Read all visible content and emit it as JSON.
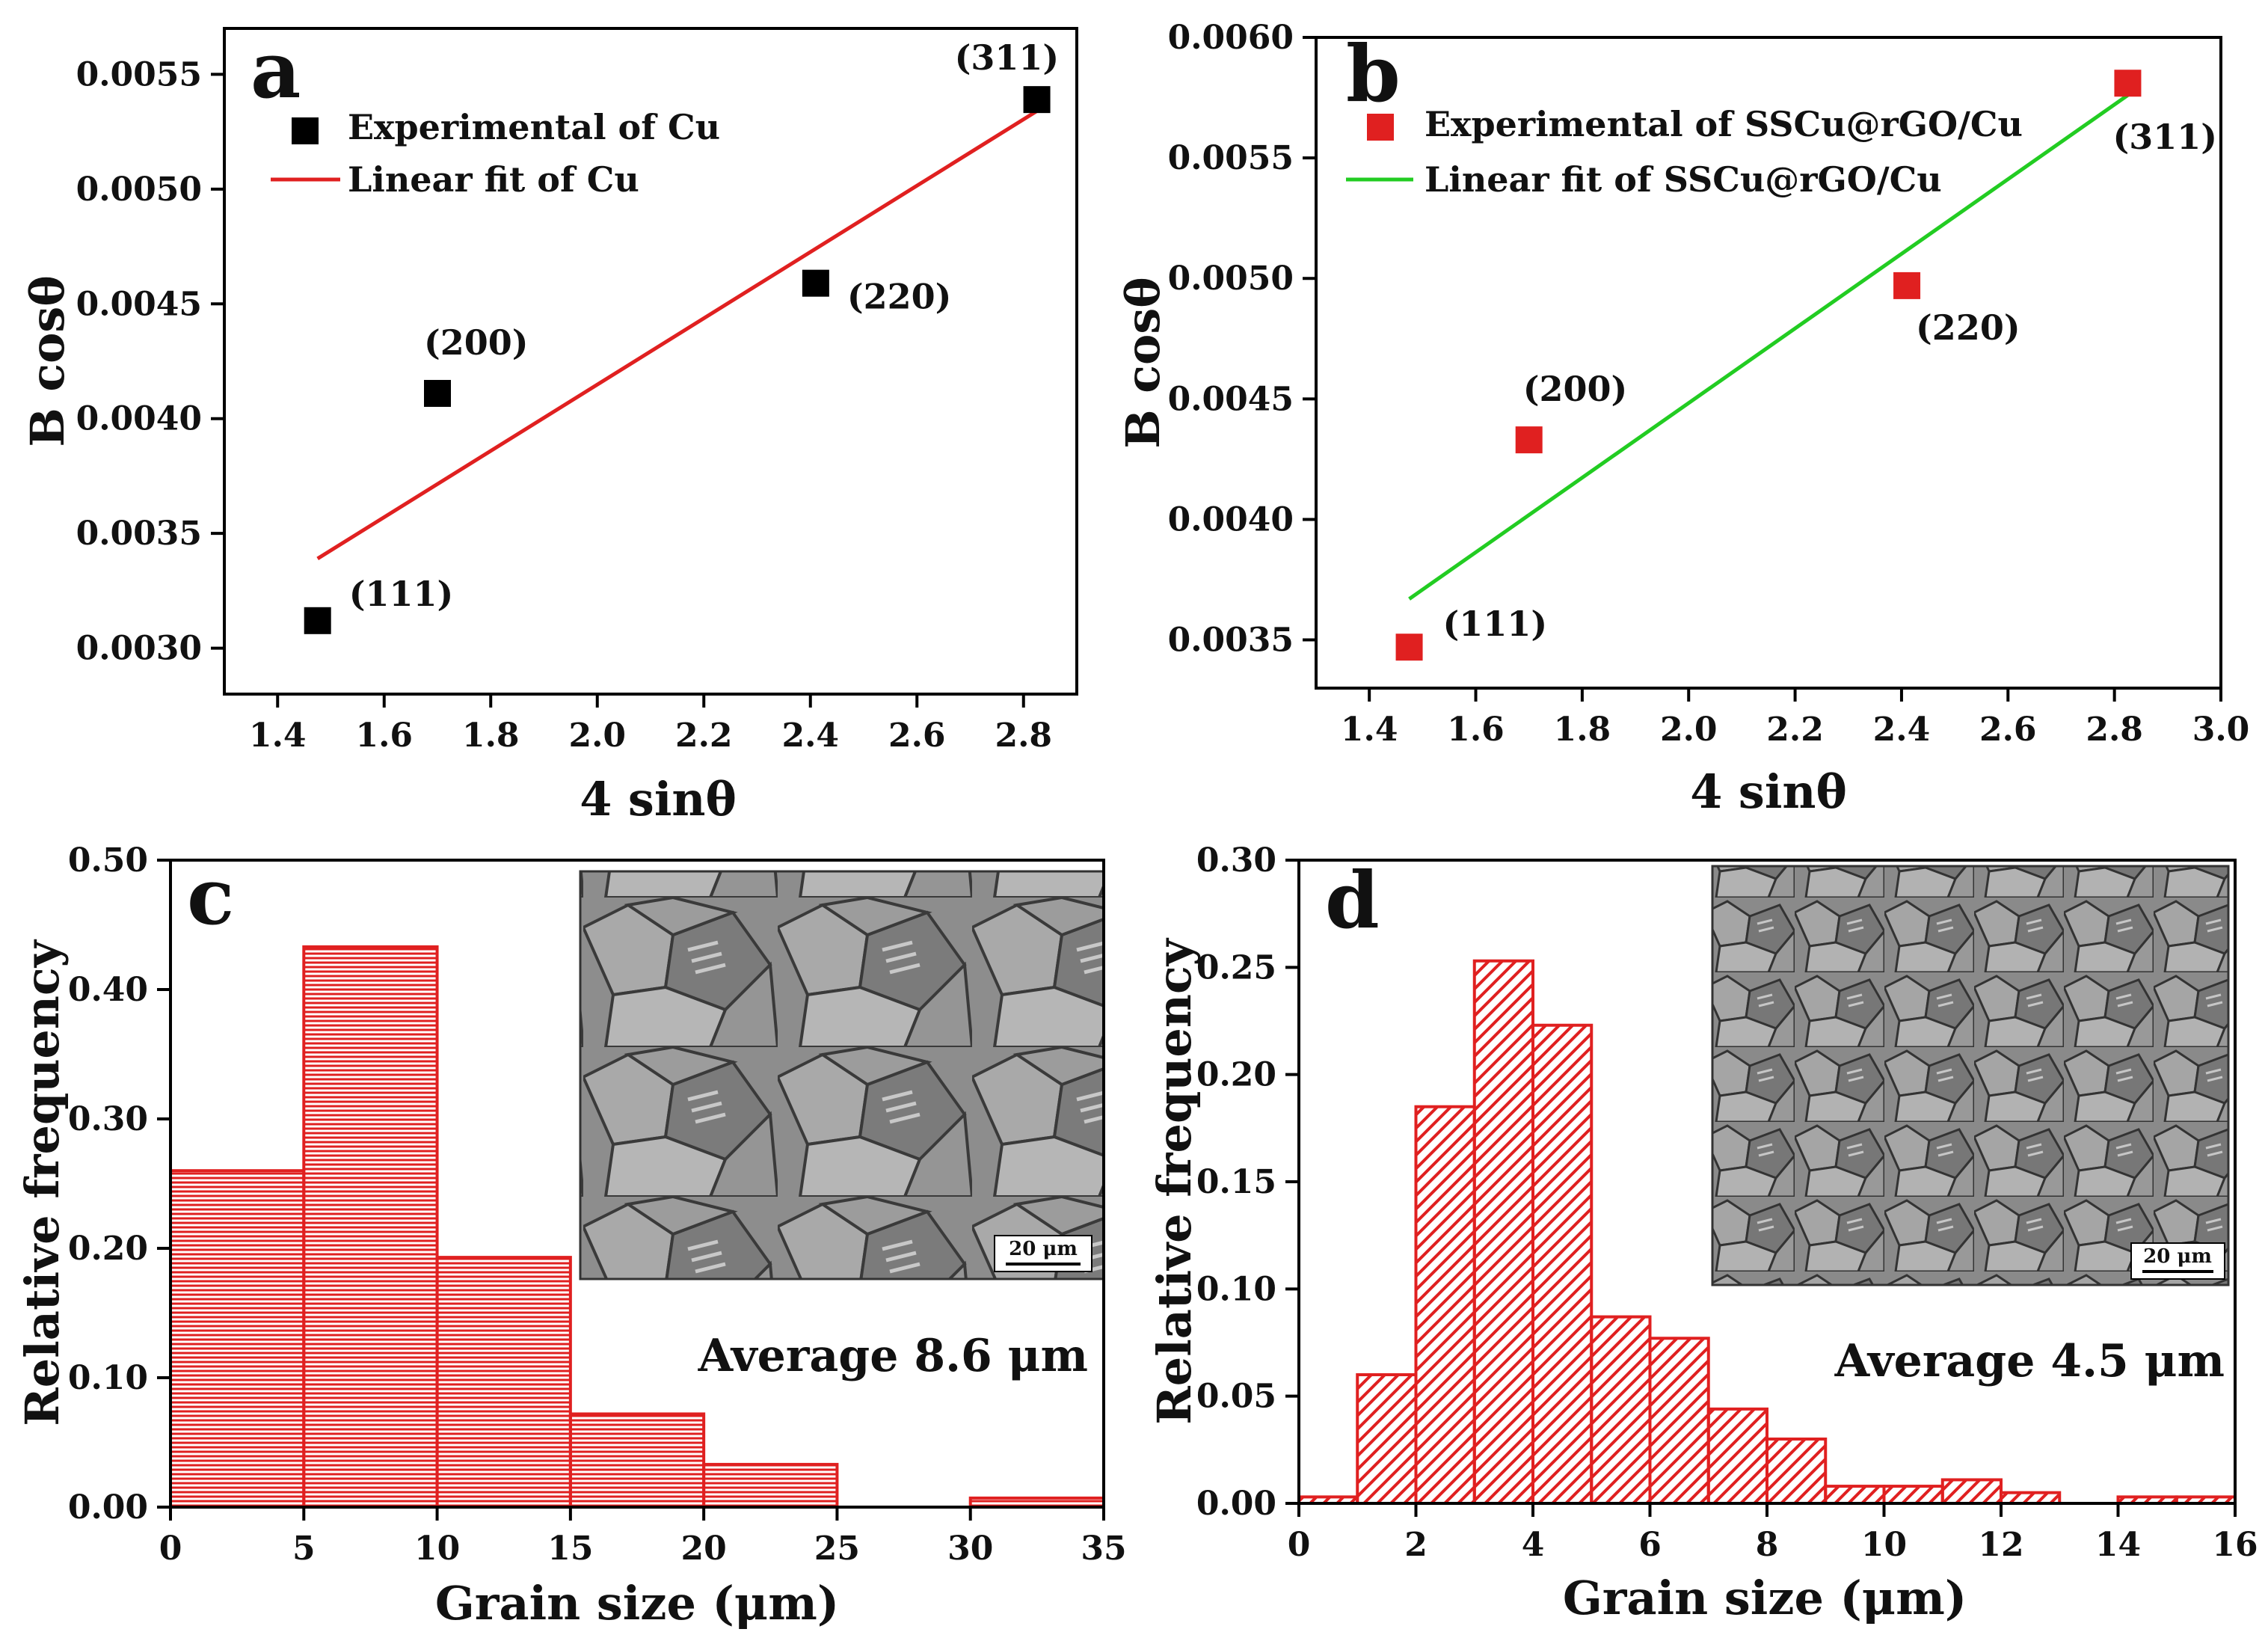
{
  "chart_data": [
    {
      "panel": "a",
      "type": "scatter",
      "xlabel": "4 sinθ",
      "ylabel": "B cosθ",
      "xlim": [
        1.3,
        2.9
      ],
      "ylim": [
        0.0028,
        0.0057
      ],
      "xticks": [
        "1.4",
        "1.6",
        "1.8",
        "2.0",
        "2.2",
        "2.4",
        "2.6",
        "2.8"
      ],
      "yticks": [
        "0.0030",
        "0.0035",
        "0.0040",
        "0.0045",
        "0.0050",
        "0.0055"
      ],
      "legend": {
        "points": "Experimental of Cu",
        "fit": "Linear fit of Cu",
        "position": "top-left"
      },
      "points": [
        {
          "label": "(111)",
          "x": 1.475,
          "y": 0.00312
        },
        {
          "label": "(200)",
          "x": 1.7,
          "y": 0.00411
        },
        {
          "label": "(220)",
          "x": 2.41,
          "y": 0.00459
        },
        {
          "label": "(311)",
          "x": 2.825,
          "y": 0.00539
        }
      ],
      "fit": {
        "x": [
          1.475,
          2.825
        ],
        "y": [
          0.00339,
          0.00534
        ]
      },
      "colors": {
        "points": "#000000",
        "fit": "#e02020"
      }
    },
    {
      "panel": "b",
      "type": "scatter",
      "xlabel": "4 sinθ",
      "ylabel": "B cosθ",
      "xlim": [
        1.3,
        3.0
      ],
      "ylim": [
        0.0033,
        0.006
      ],
      "xticks": [
        "1.4",
        "1.6",
        "1.8",
        "2.0",
        "2.2",
        "2.4",
        "2.6",
        "2.8",
        "3.0"
      ],
      "yticks": [
        "0.0035",
        "0.0040",
        "0.0045",
        "0.0050",
        "0.0055",
        "0.0060"
      ],
      "legend": {
        "points": "Experimental of SSCu@rGO/Cu",
        "fit": "Linear fit of SSCu@rGO/Cu",
        "position": "top-left"
      },
      "points": [
        {
          "label": "(111)",
          "x": 1.475,
          "y": 0.00347
        },
        {
          "label": "(200)",
          "x": 1.7,
          "y": 0.00433
        },
        {
          "label": "(220)",
          "x": 2.41,
          "y": 0.00497
        },
        {
          "label": "(311)",
          "x": 2.825,
          "y": 0.00581
        }
      ],
      "fit": {
        "x": [
          1.475,
          2.825
        ],
        "y": [
          0.00367,
          0.00576
        ]
      },
      "colors": {
        "points": "#e02020",
        "fit": "#22cc22"
      }
    },
    {
      "panel": "c",
      "type": "bar",
      "xlabel": "Grain size (μm)",
      "ylabel": "Relative frequency",
      "xlim": [
        0,
        35
      ],
      "ylim": [
        0,
        0.5
      ],
      "xticks": [
        "0",
        "5",
        "10",
        "15",
        "20",
        "25",
        "30",
        "35"
      ],
      "yticks": [
        "0.00",
        "0.10",
        "0.20",
        "0.30",
        "0.40",
        "0.50"
      ],
      "bins": [
        {
          "from": 0,
          "to": 5,
          "value": 0.26
        },
        {
          "from": 5,
          "to": 10,
          "value": 0.433
        },
        {
          "from": 10,
          "to": 15,
          "value": 0.193
        },
        {
          "from": 15,
          "to": 20,
          "value": 0.072
        },
        {
          "from": 20,
          "to": 25,
          "value": 0.033
        },
        {
          "from": 25,
          "to": 30,
          "value": 0.0
        },
        {
          "from": 30,
          "to": 35,
          "value": 0.007
        }
      ],
      "hatch": "horizontal",
      "annotation": "Average 8.6 μm",
      "scale_bar": "20 μm",
      "colors": {
        "bar": "#e02020"
      }
    },
    {
      "panel": "d",
      "type": "bar",
      "xlabel": "Grain size (μm)",
      "ylabel": "Relative frequency",
      "xlim": [
        0,
        16
      ],
      "ylim": [
        0,
        0.3
      ],
      "xticks": [
        "0",
        "2",
        "4",
        "6",
        "8",
        "10",
        "12",
        "14",
        "16"
      ],
      "yticks": [
        "0.00",
        "0.05",
        "0.10",
        "0.15",
        "0.20",
        "0.25",
        "0.30"
      ],
      "bins": [
        {
          "from": 0,
          "to": 1,
          "value": 0.003
        },
        {
          "from": 1,
          "to": 2,
          "value": 0.06
        },
        {
          "from": 2,
          "to": 3,
          "value": 0.185
        },
        {
          "from": 3,
          "to": 4,
          "value": 0.253
        },
        {
          "from": 4,
          "to": 5,
          "value": 0.223
        },
        {
          "from": 5,
          "to": 6,
          "value": 0.087
        },
        {
          "from": 6,
          "to": 7,
          "value": 0.077
        },
        {
          "from": 7,
          "to": 8,
          "value": 0.044
        },
        {
          "from": 8,
          "to": 9,
          "value": 0.03
        },
        {
          "from": 9,
          "to": 10,
          "value": 0.008
        },
        {
          "from": 10,
          "to": 11,
          "value": 0.008
        },
        {
          "from": 11,
          "to": 12,
          "value": 0.011
        },
        {
          "from": 12,
          "to": 13,
          "value": 0.005
        },
        {
          "from": 13,
          "to": 14,
          "value": 0.0
        },
        {
          "from": 14,
          "to": 15,
          "value": 0.003
        },
        {
          "from": 15,
          "to": 16,
          "value": 0.003
        }
      ],
      "hatch": "diagonal",
      "annotation": "Average 4.5 μm",
      "scale_bar": "20 μm",
      "colors": {
        "bar": "#e02020"
      }
    }
  ]
}
